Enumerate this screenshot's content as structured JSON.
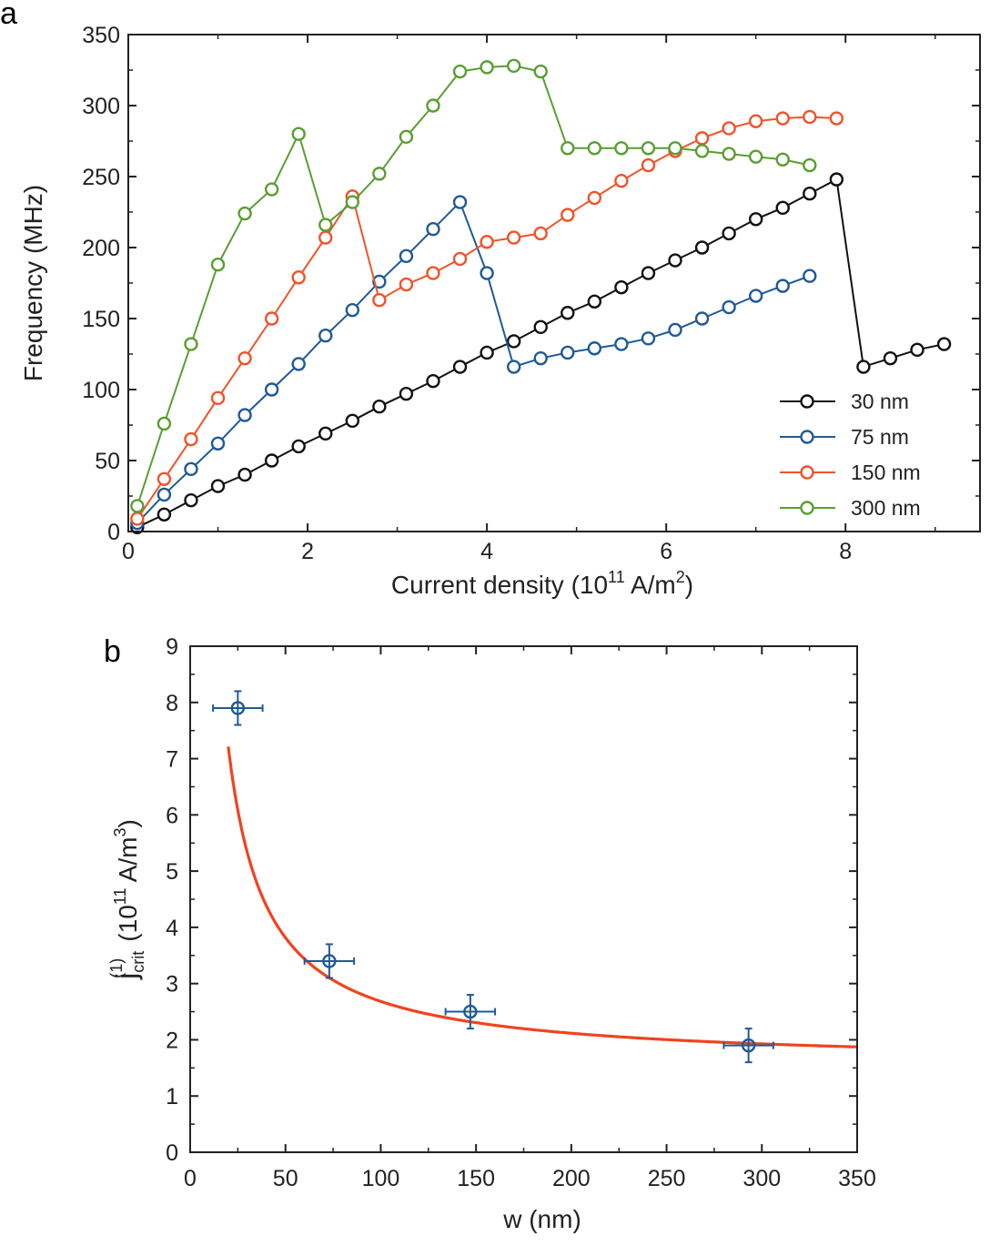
{
  "chart_data": [
    {
      "panel_label": "a",
      "type": "line",
      "xlabel": "Current density (10",
      "xlabel_exp": "11",
      "xlabel_mid": " A/m",
      "xlabel_exp2": "2",
      "xlabel_end": ")",
      "ylabel": "Frequency (MHz)",
      "xlim": [
        0,
        9.5
      ],
      "ylim": [
        0,
        350
      ],
      "xticks": [
        0,
        2,
        4,
        6,
        8
      ],
      "yticks": [
        0,
        50,
        100,
        150,
        200,
        250,
        300,
        350
      ],
      "legend_position": "bottom-right",
      "series": [
        {
          "name": "30 nm",
          "color": "#111111",
          "x": [
            0.1,
            0.4,
            0.7,
            1.0,
            1.3,
            1.6,
            1.9,
            2.2,
            2.5,
            2.8,
            3.1,
            3.4,
            3.7,
            4.0,
            4.3,
            4.6,
            4.9,
            5.2,
            5.5,
            5.8,
            6.1,
            6.4,
            6.7,
            7.0,
            7.3,
            7.6,
            7.9,
            8.2,
            8.5,
            8.8,
            9.1
          ],
          "y": [
            3,
            12,
            22,
            32,
            40,
            50,
            60,
            69,
            78,
            88,
            97,
            106,
            116,
            126,
            134,
            144,
            154,
            162,
            172,
            182,
            191,
            200,
            210,
            220,
            228,
            238,
            248,
            116,
            122,
            128,
            132
          ]
        },
        {
          "name": "75 nm",
          "color": "#1f5a96",
          "x": [
            0.1,
            0.4,
            0.7,
            1.0,
            1.3,
            1.6,
            1.9,
            2.2,
            2.5,
            2.8,
            3.1,
            3.4,
            3.7,
            4.0,
            4.3,
            4.6,
            4.9,
            5.2,
            5.5,
            5.8,
            6.1,
            6.4,
            6.7,
            7.0,
            7.3,
            7.6
          ],
          "y": [
            6,
            26,
            44,
            62,
            82,
            100,
            118,
            138,
            156,
            176,
            194,
            213,
            232,
            182,
            116,
            122,
            126,
            129,
            132,
            136,
            142,
            150,
            158,
            166,
            173,
            180
          ]
        },
        {
          "name": "150 nm",
          "color": "#f0532a",
          "x": [
            0.1,
            0.4,
            0.7,
            1.0,
            1.3,
            1.6,
            1.9,
            2.2,
            2.5,
            2.8,
            3.1,
            3.4,
            3.7,
            4.0,
            4.3,
            4.6,
            4.9,
            5.2,
            5.5,
            5.8,
            6.1,
            6.4,
            6.7,
            7.0,
            7.3,
            7.6,
            7.9
          ],
          "y": [
            9,
            37,
            65,
            94,
            122,
            150,
            179,
            207,
            236,
            163,
            174,
            182,
            192,
            204,
            207,
            210,
            223,
            235,
            247,
            258,
            268,
            277,
            284,
            289,
            291,
            292,
            291
          ]
        },
        {
          "name": "300 nm",
          "color": "#5a9e33",
          "x": [
            0.1,
            0.4,
            0.7,
            1.0,
            1.3,
            1.6,
            1.9,
            2.2,
            2.5,
            2.8,
            3.1,
            3.4,
            3.7,
            4.0,
            4.3,
            4.6,
            4.9,
            5.2,
            5.5,
            5.8,
            6.1,
            6.4,
            6.7,
            7.0,
            7.3,
            7.6
          ],
          "y": [
            18,
            76,
            132,
            188,
            224,
            241,
            280,
            216,
            232,
            252,
            278,
            300,
            324,
            327,
            328,
            324,
            270,
            270,
            270,
            270,
            270,
            268,
            266,
            264,
            262,
            258
          ]
        }
      ]
    },
    {
      "panel_label": "b",
      "type": "scatter",
      "xlabel": "w (nm)",
      "ylabel_main": "j",
      "ylabel_sub": "crit",
      "ylabel_sup": "(1)",
      "ylabel_unit": "(10",
      "ylabel_unit_exp": "11",
      "ylabel_unit_mid": " A/m",
      "ylabel_unit_exp2": "3",
      "ylabel_unit_end": ")",
      "xlim": [
        0,
        350
      ],
      "ylim": [
        0,
        9
      ],
      "xticks": [
        0,
        50,
        100,
        150,
        200,
        250,
        300,
        350
      ],
      "yticks": [
        0,
        1,
        2,
        3,
        4,
        5,
        6,
        7,
        8,
        9
      ],
      "points": {
        "color": "#1f5a96",
        "x": [
          25,
          73,
          147,
          293
        ],
        "y": [
          7.9,
          3.4,
          2.5,
          1.9
        ],
        "x_err": [
          13,
          13,
          13,
          13
        ],
        "y_err": [
          0.3,
          0.3,
          0.3,
          0.3
        ]
      },
      "fit": {
        "color": "#f0431f",
        "form": "y = a + b / w",
        "a": 1.55,
        "b": 113.3,
        "x_range": [
          20,
          350
        ]
      }
    }
  ]
}
